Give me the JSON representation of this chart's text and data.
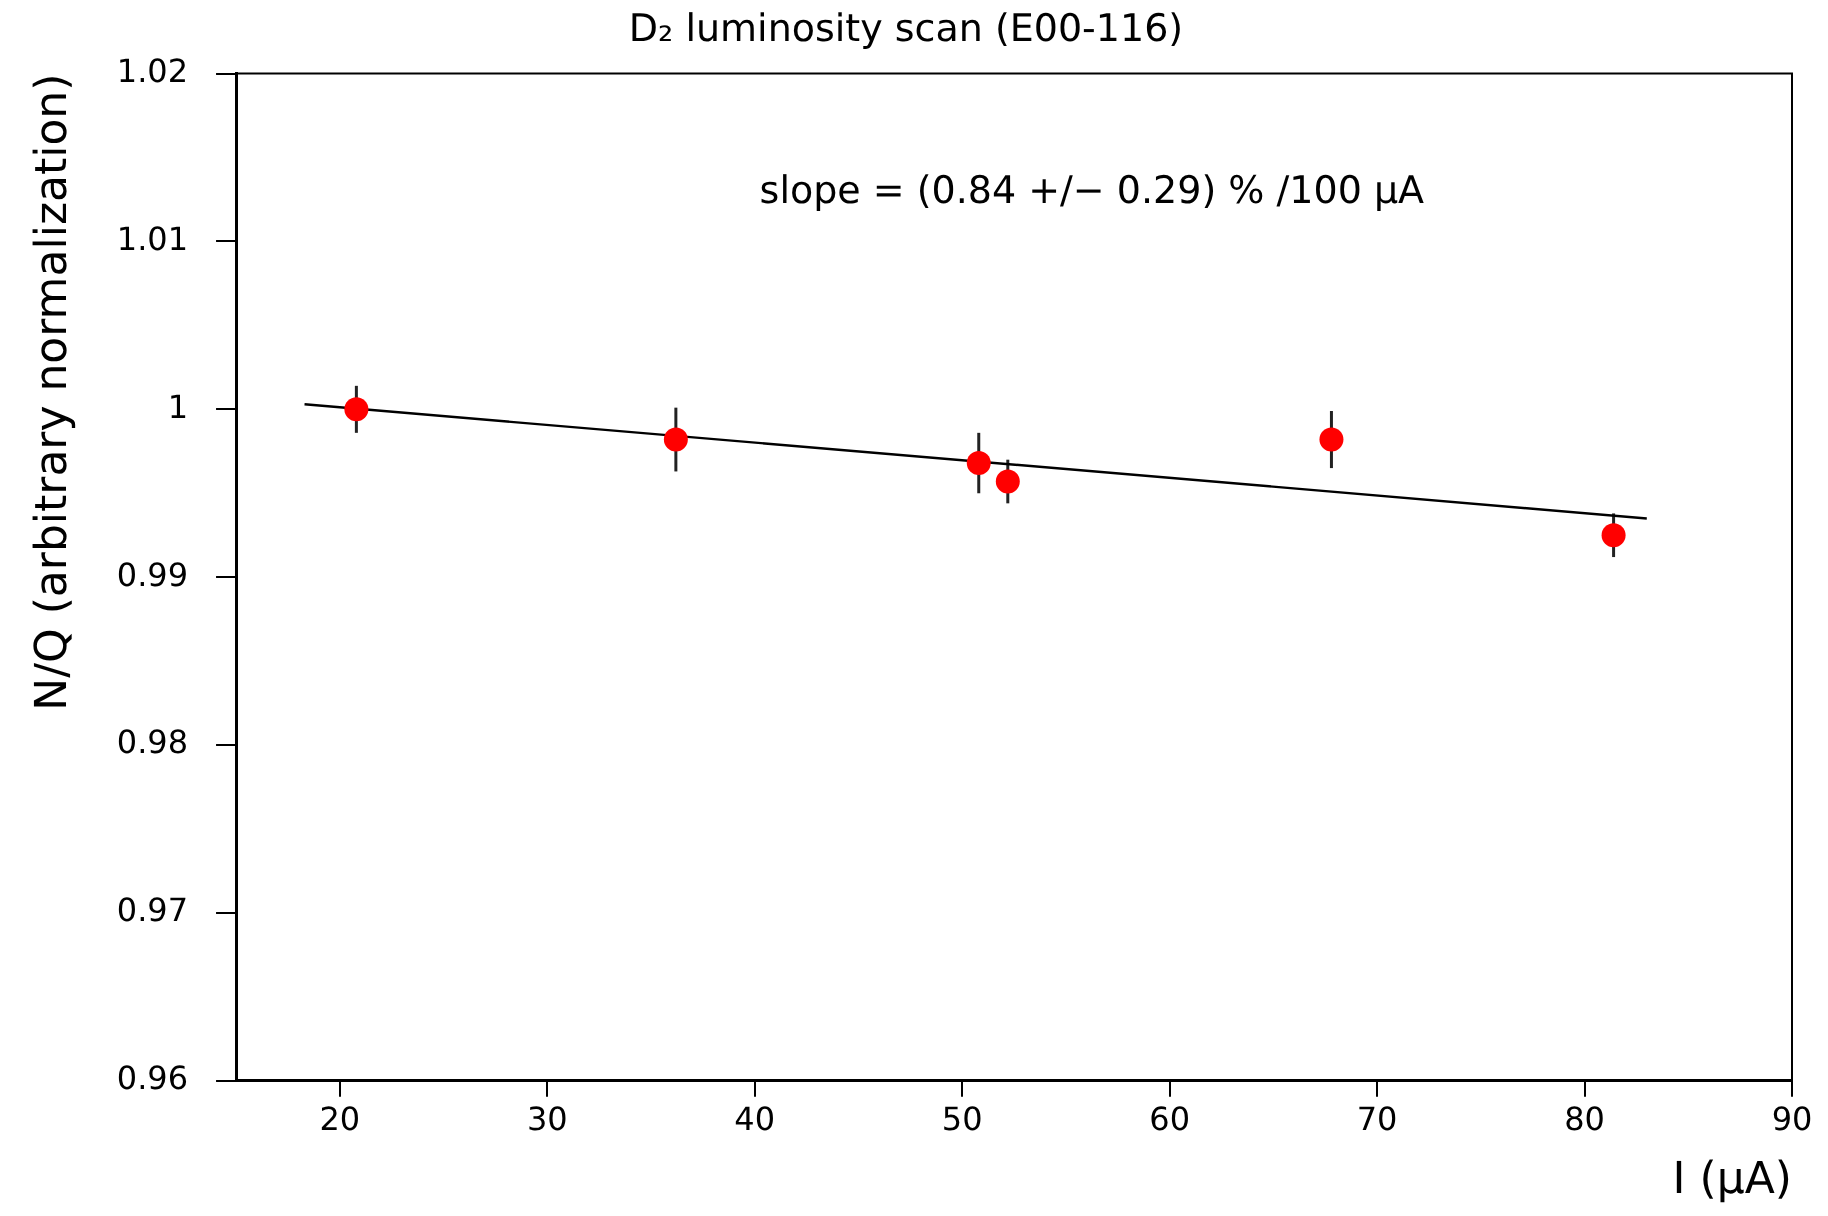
{
  "chart_data": {
    "type": "scatter",
    "title": "D₂ luminosity scan (E00-116)",
    "xlabel": "I (μA)",
    "ylabel": "N/Q (arbitrary normalization)",
    "annotations": [
      "slope = (0.84 +/− 0.29) % /100 μA"
    ],
    "xlim": [
      15,
      90
    ],
    "xticks": [
      20,
      30,
      40,
      50,
      60,
      70,
      80,
      90
    ],
    "ylim": [
      0.96,
      1.02
    ],
    "yticks": [
      0.96,
      0.97,
      0.98,
      0.99,
      1,
      1.01,
      1.02
    ],
    "grid": false,
    "legend": false,
    "marker": "circle",
    "series": [
      {
        "color": "#ff0000",
        "x": [
          20.8,
          36.2,
          50.8,
          52.2,
          67.8,
          81.4
        ],
        "values": [
          1.0,
          0.9982,
          0.9968,
          0.9957,
          0.9982,
          0.9925
        ],
        "errors": [
          0.0014,
          0.0019,
          0.0018,
          0.0013,
          0.0017,
          0.0013
        ]
      },
      {
        "type": "line",
        "color": "#000000",
        "marker": "none",
        "line_style": "solid",
        "x": [
          18.3,
          83.0
        ],
        "values": [
          1.0003,
          0.9935
        ]
      }
    ]
  }
}
